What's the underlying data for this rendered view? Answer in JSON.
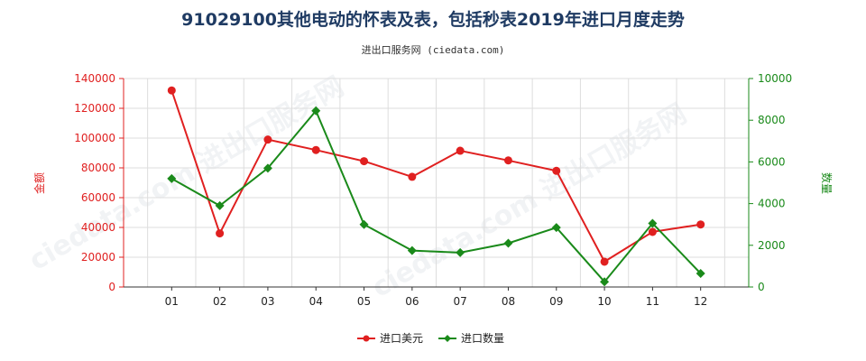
{
  "chart_data": {
    "type": "line",
    "title": "91029100其他电动的怀表及表，包括秒表2019年进口月度走势",
    "subtitle": "进出口服务网 (ciedata.com)",
    "categories": [
      "01",
      "02",
      "03",
      "04",
      "05",
      "06",
      "07",
      "08",
      "09",
      "10",
      "11",
      "12"
    ],
    "y_left": {
      "label": "金额",
      "ylim": [
        0,
        140000
      ],
      "ticks": [
        "0",
        "20000",
        "40000",
        "60000",
        "80000",
        "100000",
        "120000",
        "140000"
      ],
      "color": "#e02020"
    },
    "y_right": {
      "label": "数量",
      "ylim": [
        0,
        10000
      ],
      "ticks": [
        "0",
        "2000",
        "4000",
        "6000",
        "8000",
        "10000"
      ],
      "color": "#1a8a1a"
    },
    "grid": true,
    "legend_position": "bottom",
    "series": [
      {
        "name": "进口美元",
        "axis": "left",
        "color": "#e02020",
        "marker": "circle",
        "values": [
          132000,
          36000,
          99000,
          92000,
          84500,
          74000,
          91500,
          85000,
          78000,
          17000,
          37000,
          42000
        ]
      },
      {
        "name": "进口数量",
        "axis": "right",
        "color": "#1a8a1a",
        "marker": "diamond",
        "values": [
          5200,
          3900,
          5700,
          8450,
          3000,
          1750,
          1650,
          2100,
          2850,
          250,
          3050,
          650
        ]
      }
    ]
  }
}
